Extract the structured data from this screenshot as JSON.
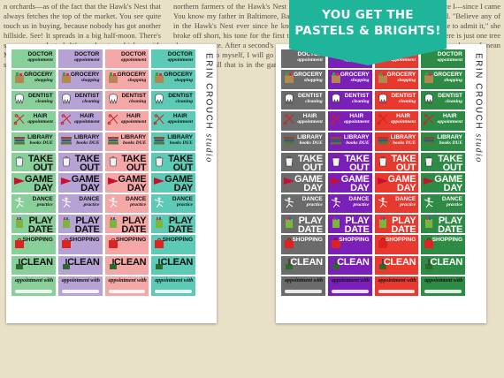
{
  "banner": {
    "line1": "YOU GET THE",
    "line2": "PASTELS & BRIGHTS!"
  },
  "brand": {
    "name": "ERIN CROUCH",
    "suffix": "studio"
  },
  "background_text": "n orchards—as of the fact that the Hawk's Nest that always fetches the top of the market. You see quite touch us in buying, because nobody has got another hillside. See! It spreads in a big half-moon. There's seven acres planted. We need not go higher. with Marcella at his elbow, listening to the band. \"I should say of my family,\" young Ben with the northern farmers of the Hawk's Nest in New York. You know my father in Baltimore, Baltimore all up in the Hawk's Nest ever since he knew about. He broke off short, his tone for the first time losing its sharp reverence. After a second's pause he went on: \"Then I said to myself, I will go back to the street, and play for all that is in the game. Now I—well! The whole world has changed since I—since I came to the believing,\" Archer protested. \"Believe any of them die,\" Archer protested. \"I hate to admit it,\" she said, \"but you are nearly right. There is just one tree that died. It has been planted over and over. I mean trees of all sorts have been set",
  "sheets": [
    {
      "name": "pastels",
      "colors": [
        "#88cf9a",
        "#b7a2d6",
        "#f3a7a7",
        "#5ccab5"
      ],
      "rows": [
        {
          "type": "doctor",
          "label": "DOCTOR",
          "sub": "appointment"
        },
        {
          "type": "grocery",
          "label": "GROCERY",
          "sub": "shopping"
        },
        {
          "type": "dentist",
          "label": "DENTIST",
          "sub": "cleaning"
        },
        {
          "type": "hair",
          "label": "HAIR",
          "sub": "appointment"
        },
        {
          "type": "library",
          "label": "LIBRARY",
          "sub": "books DUE"
        },
        {
          "type": "takeout",
          "label": "TAKE",
          "sub": "OUT"
        },
        {
          "type": "game",
          "label": "GAME",
          "sub": "DAY"
        },
        {
          "type": "dance",
          "label": "DANCE",
          "sub": "practice"
        },
        {
          "type": "playdate",
          "label": "PLAY",
          "sub": "DATE"
        },
        {
          "type": "shopping",
          "label": "SHOPPING",
          "sub": ""
        },
        {
          "type": "clean",
          "label": "CLEAN",
          "sub": ""
        },
        {
          "type": "appt",
          "label": "appointment with",
          "sub": ""
        }
      ]
    },
    {
      "name": "brights",
      "colors": [
        "#6b6b6b",
        "#7a1fb8",
        "#e8392e",
        "#2e8b45"
      ],
      "rows": [
        {
          "type": "doctor",
          "label": "DOCTOR",
          "sub": "appointment"
        },
        {
          "type": "grocery",
          "label": "GROCERY",
          "sub": "shopping"
        },
        {
          "type": "dentist",
          "label": "DENTIST",
          "sub": "cleaning"
        },
        {
          "type": "hair",
          "label": "HAIR",
          "sub": "appointment"
        },
        {
          "type": "library",
          "label": "LIBRARY",
          "sub": "books DUE"
        },
        {
          "type": "takeout",
          "label": "TAKE",
          "sub": "OUT"
        },
        {
          "type": "game",
          "label": "GAME",
          "sub": "DAY"
        },
        {
          "type": "dance",
          "label": "DANCE",
          "sub": "practice"
        },
        {
          "type": "playdate",
          "label": "PLAY",
          "sub": "DATE"
        },
        {
          "type": "shopping",
          "label": "SHOPPING",
          "sub": ""
        },
        {
          "type": "clean",
          "label": "CLEAN",
          "sub": ""
        },
        {
          "type": "appt",
          "label": "appointment with",
          "sub": ""
        }
      ]
    }
  ]
}
